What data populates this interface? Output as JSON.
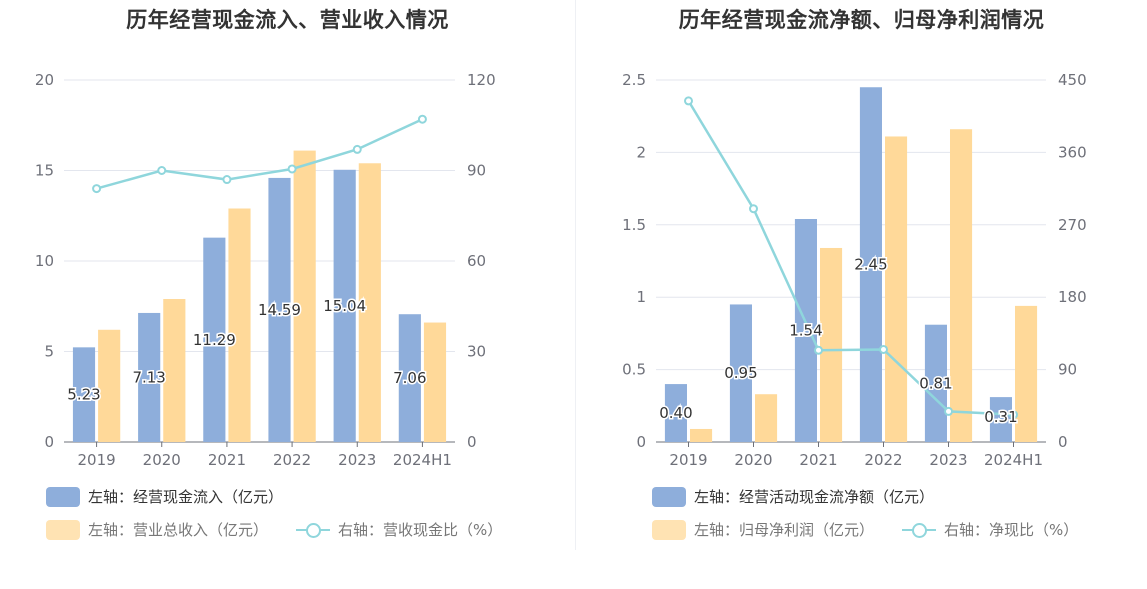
{
  "chart_data": [
    {
      "type": "bar",
      "title": "历年经营现金流入、营业收入情况",
      "categories": [
        "2019",
        "2020",
        "2021",
        "2022",
        "2023",
        "2024H1"
      ],
      "left_axis": {
        "ylim": [
          0,
          20
        ],
        "ticks": [
          "0",
          "5",
          "10",
          "15",
          "20"
        ]
      },
      "right_axis": {
        "ylim": [
          0,
          120
        ],
        "ticks": [
          "0",
          "30",
          "60",
          "90",
          "120"
        ]
      },
      "series": [
        {
          "name": "左轴：经营现金流入（亿元）",
          "type": "bar",
          "axis": "left",
          "color": "#8eaedb",
          "values": [
            5.23,
            7.13,
            11.29,
            14.59,
            15.04,
            7.06
          ],
          "labels": [
            "5.23",
            "7.13",
            "11.29",
            "14.59",
            "15.04",
            "7.06"
          ]
        },
        {
          "name": "左轴：营业总收入（亿元）",
          "type": "bar",
          "axis": "left",
          "color": "#ffd999",
          "values": [
            6.2,
            7.9,
            12.9,
            16.1,
            15.4,
            6.6
          ]
        },
        {
          "name": "右轴：营收现金比（%）",
          "type": "line",
          "axis": "right",
          "color": "#8fd6dc",
          "values": [
            84,
            90,
            87,
            90.5,
            97,
            107
          ]
        }
      ]
    },
    {
      "type": "bar",
      "title": "历年经营现金流净额、归母净利润情况",
      "categories": [
        "2019",
        "2020",
        "2021",
        "2022",
        "2023",
        "2024H1"
      ],
      "left_axis": {
        "ylim": [
          0,
          2.5
        ],
        "ticks": [
          "0",
          "0.5",
          "1",
          "1.5",
          "2",
          "2.5"
        ]
      },
      "right_axis": {
        "ylim": [
          0,
          450
        ],
        "ticks": [
          "0",
          "90",
          "180",
          "270",
          "360",
          "450"
        ]
      },
      "series": [
        {
          "name": "左轴：经营活动现金流净额（亿元）",
          "type": "bar",
          "axis": "left",
          "color": "#8eaedb",
          "values": [
            0.4,
            0.95,
            1.54,
            2.45,
            0.81,
            0.31
          ],
          "labels": [
            "0.40",
            "0.95",
            "1.54",
            "2.45",
            "0.81",
            "0.31"
          ]
        },
        {
          "name": "左轴：归母净利润（亿元）",
          "type": "bar",
          "axis": "left",
          "color": "#ffd999",
          "values": [
            0.09,
            0.33,
            1.34,
            2.11,
            2.16,
            0.94
          ]
        },
        {
          "name": "右轴：净现比（%）",
          "type": "line",
          "axis": "right",
          "color": "#8fd6dc",
          "values": [
            424,
            290,
            114,
            115,
            38,
            34
          ]
        }
      ]
    }
  ]
}
